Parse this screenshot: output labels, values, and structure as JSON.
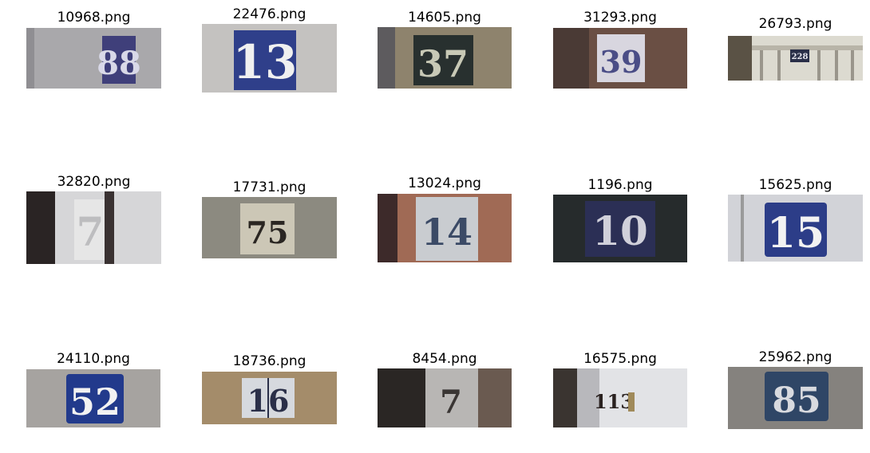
{
  "images": [
    {
      "filename": "10968.png",
      "digits": "88"
    },
    {
      "filename": "22476.png",
      "digits": "13"
    },
    {
      "filename": "14605.png",
      "digits": "37"
    },
    {
      "filename": "31293.png",
      "digits": "39"
    },
    {
      "filename": "26793.png",
      "digits": "228"
    },
    {
      "filename": "32820.png",
      "digits": "7"
    },
    {
      "filename": "17731.png",
      "digits": "75"
    },
    {
      "filename": "13024.png",
      "digits": "14"
    },
    {
      "filename": "1196.png",
      "digits": "10"
    },
    {
      "filename": "15625.png",
      "digits": "15"
    },
    {
      "filename": "24110.png",
      "digits": "52"
    },
    {
      "filename": "18736.png",
      "digits": "16"
    },
    {
      "filename": "8454.png",
      "digits": "7"
    },
    {
      "filename": "16575.png",
      "digits": "113"
    },
    {
      "filename": "25962.png",
      "digits": "85"
    }
  ]
}
